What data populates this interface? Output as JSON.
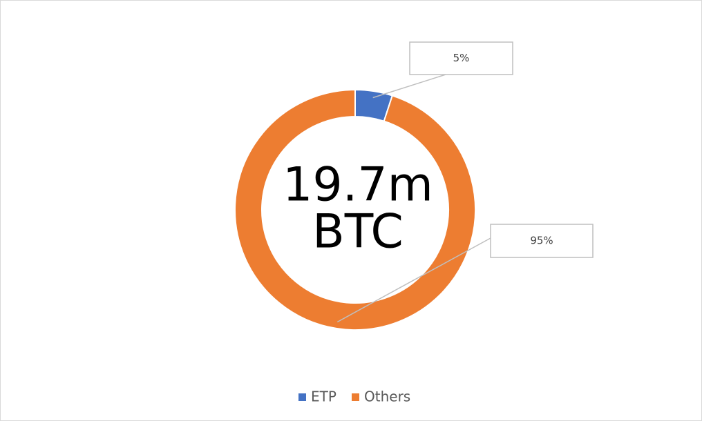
{
  "chart_data": {
    "type": "donut",
    "center_text": [
      "19.7m",
      "BTC"
    ],
    "categories": [
      "ETP",
      "Others"
    ],
    "values": [
      5,
      95
    ],
    "value_labels": [
      "5%",
      "95%"
    ],
    "colors": [
      "#4472c4",
      "#ed7d31"
    ],
    "legend": "bottom"
  }
}
